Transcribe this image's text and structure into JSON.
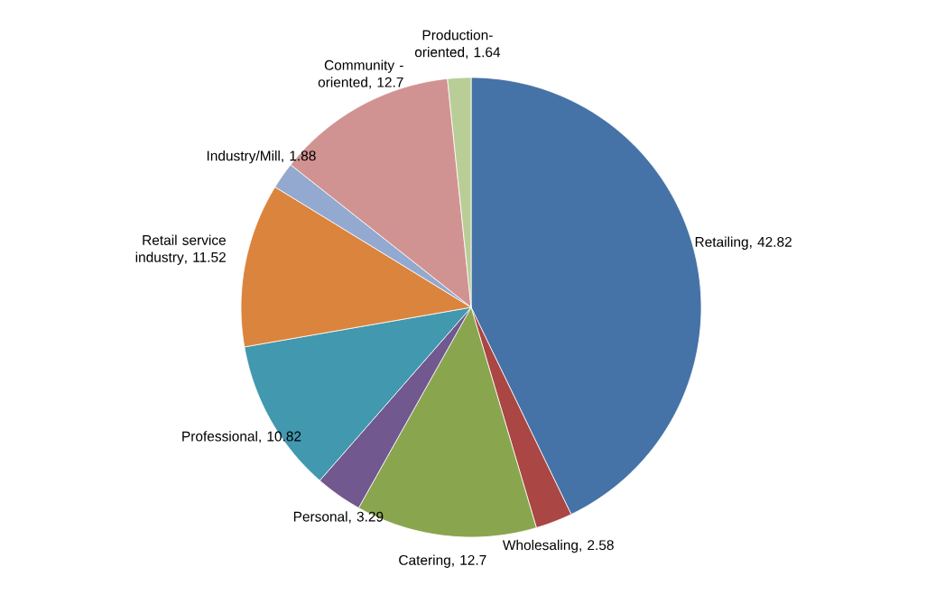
{
  "chart_data": {
    "type": "pie",
    "data_labels": true,
    "categories": [
      "Retailing",
      "Wholesaling",
      "Catering",
      "Personal",
      "Professional",
      "Retail service industry",
      "Industry/Mill",
      "Community -oriented",
      "Production-oriented"
    ],
    "values": [
      42.82,
      2.58,
      12.7,
      3.29,
      10.82,
      11.52,
      1.88,
      12.7,
      1.64
    ],
    "value_labels": [
      ", 42.82",
      ", 2.58",
      ", 12.7",
      ", 3.29",
      ", 10.82",
      ", 11.52",
      ", 1.88",
      ", 12.7",
      ", 1.64"
    ],
    "colors": [
      "#4572a7",
      "#aa4643",
      "#89a54e",
      "#71588f",
      "#4198af",
      "#db843d",
      "#93a9cf",
      "#d19392",
      "#b9cd96"
    ]
  }
}
